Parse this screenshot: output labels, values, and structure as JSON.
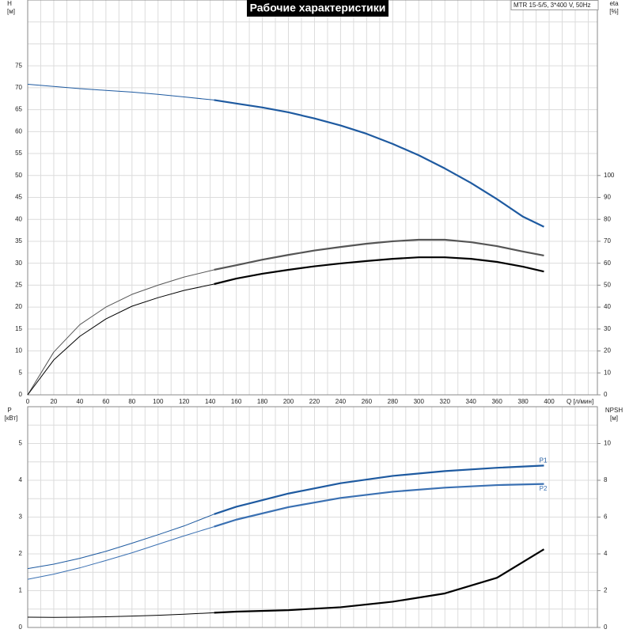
{
  "chart_data": [
    {
      "type": "line",
      "title": "Рабочие характеристики",
      "model": "MTR 15-5/5, 3*400 V, 50Hz",
      "y_label": "H",
      "y_unit": "[м]",
      "y2_label": "eta",
      "y2_unit": "[%]",
      "x_label": "Q [л/мин]",
      "x": [
        0,
        20,
        40,
        60,
        80,
        100,
        120,
        143,
        160,
        180,
        200,
        220,
        240,
        260,
        280,
        300,
        320,
        340,
        360,
        380,
        396
      ],
      "xlim": [
        0,
        437
      ],
      "xticks": [
        0,
        20,
        40,
        60,
        80,
        100,
        120,
        140,
        160,
        180,
        200,
        220,
        240,
        260,
        280,
        300,
        320,
        340,
        360,
        380,
        400
      ],
      "xgrid": [
        10,
        30,
        50,
        70,
        90,
        110,
        130,
        150,
        170,
        190,
        210,
        230,
        250,
        270,
        290,
        310,
        330,
        350,
        370,
        390,
        410,
        420,
        430
      ],
      "ylim": [
        0,
        90
      ],
      "yticks": [
        0,
        5,
        10,
        15,
        20,
        25,
        30,
        35,
        40,
        45,
        50,
        55,
        60,
        65,
        70,
        75
      ],
      "ygrid": [
        80,
        85
      ],
      "y2lim": [
        0,
        180
      ],
      "y2ticks": [
        0,
        10,
        20,
        30,
        40,
        50,
        60,
        70,
        80,
        90,
        100
      ],
      "operating_range": [
        143,
        396
      ],
      "grid": true,
      "series": [
        {
          "color": "#1e5aa0",
          "values": [
            70.8,
            70.3,
            69.8,
            69.4,
            69.0,
            68.5,
            67.9,
            67.2,
            66.4,
            65.5,
            64.4,
            63.0,
            61.4,
            59.5,
            57.2,
            54.6,
            51.6,
            48.3,
            44.6,
            40.6,
            38.3
          ]
        },
        {
          "color": "#555555",
          "axis": "y2",
          "values": [
            0,
            19.5,
            32,
            40,
            45.8,
            50,
            53.7,
            57,
            59.1,
            61.6,
            63.8,
            65.8,
            67.4,
            68.9,
            70,
            70.7,
            70.7,
            69.6,
            67.8,
            65.3,
            63.5
          ]
        },
        {
          "color": "#000000",
          "axis": "y2",
          "values": [
            0,
            15.9,
            26.7,
            34.6,
            40.4,
            44.3,
            47.6,
            50.5,
            53,
            55.2,
            57,
            58.6,
            59.9,
            61,
            62,
            62.7,
            62.7,
            62,
            60.6,
            58.4,
            56.2
          ]
        }
      ]
    },
    {
      "type": "line",
      "y_label": "P",
      "y_unit": "[кВт]",
      "y2_label": "NPSH",
      "y2_unit": "[м]",
      "x": [
        0,
        20,
        40,
        60,
        80,
        100,
        120,
        143,
        160,
        200,
        240,
        280,
        320,
        360,
        396
      ],
      "xlim": [
        0,
        437
      ],
      "xgrid": [
        20,
        40,
        60,
        80,
        100,
        120,
        140,
        160,
        180,
        200,
        220,
        240,
        260,
        280,
        300,
        320,
        340,
        360,
        380,
        400,
        420,
        10,
        30,
        50,
        70,
        90,
        110,
        130,
        150,
        170,
        190,
        210,
        230,
        250,
        270,
        290,
        310,
        330,
        350,
        370,
        390,
        410,
        430
      ],
      "ylim": [
        0,
        6
      ],
      "yticks": [
        0,
        1,
        2,
        3,
        4,
        5
      ],
      "ygrid": [
        0.5,
        1.5,
        2.5,
        3.5,
        4.5,
        5.5
      ],
      "y2lim": [
        0,
        12
      ],
      "y2ticks": [
        0,
        2,
        4,
        6,
        8,
        10
      ],
      "operating_range": [
        143,
        396
      ],
      "grid": true,
      "series": [
        {
          "name": "P1",
          "color": "#1e5aa0",
          "values": [
            1.6,
            1.72,
            1.88,
            2.07,
            2.29,
            2.52,
            2.76,
            3.08,
            3.28,
            3.64,
            3.92,
            4.12,
            4.25,
            4.34,
            4.4
          ]
        },
        {
          "name": "P2",
          "color": "#3a70b2",
          "values": [
            1.31,
            1.45,
            1.62,
            1.82,
            2.03,
            2.26,
            2.49,
            2.74,
            2.93,
            3.27,
            3.52,
            3.69,
            3.8,
            3.87,
            3.9
          ]
        },
        {
          "color": "#000000",
          "axis": "y2",
          "values": [
            0.56,
            0.55,
            0.56,
            0.58,
            0.62,
            0.66,
            0.72,
            0.8,
            0.86,
            0.94,
            1.1,
            1.4,
            1.85,
            2.7,
            4.25
          ]
        }
      ]
    }
  ]
}
